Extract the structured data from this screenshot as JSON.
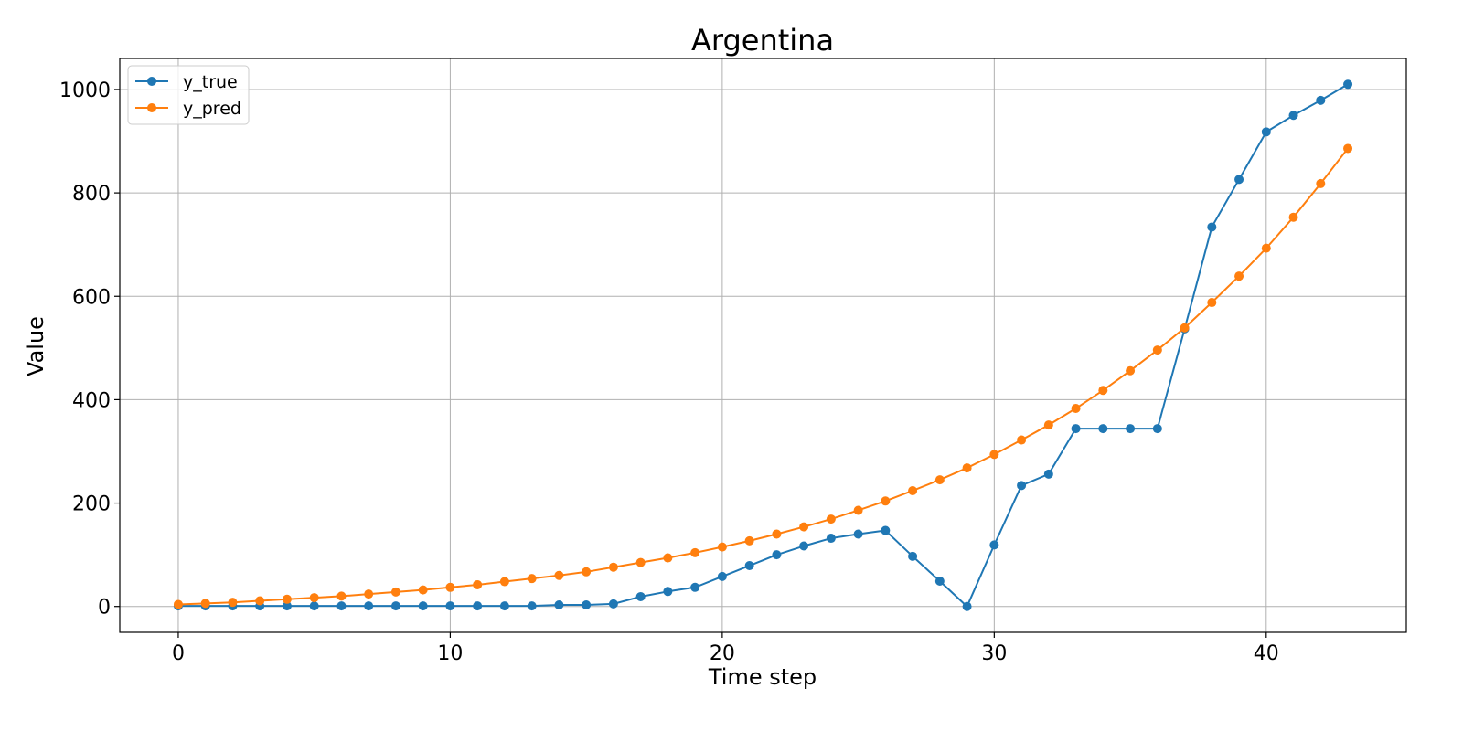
{
  "chart_data": {
    "type": "line",
    "title": "Argentina",
    "xlabel": "Time step",
    "ylabel": "Value",
    "xlim": [
      -2.15,
      45.15
    ],
    "ylim": [
      -50,
      1060
    ],
    "xticks": [
      0,
      10,
      20,
      30,
      40
    ],
    "yticks": [
      0,
      200,
      400,
      600,
      800,
      1000
    ],
    "grid": true,
    "legend": "top-left",
    "x": [
      0,
      1,
      2,
      3,
      4,
      5,
      6,
      7,
      8,
      9,
      10,
      11,
      12,
      13,
      14,
      15,
      16,
      17,
      18,
      19,
      20,
      21,
      22,
      23,
      24,
      25,
      26,
      27,
      28,
      29,
      30,
      31,
      32,
      33,
      34,
      35,
      36,
      37,
      38,
      39,
      40,
      41,
      42,
      43
    ],
    "series": [
      {
        "name": "y_true",
        "color": "#1f77b4",
        "values": [
          1,
          1,
          1,
          1,
          1,
          1,
          1,
          1,
          1,
          1,
          1,
          1,
          1,
          1,
          3,
          3,
          5,
          19,
          29,
          37,
          58,
          79,
          100,
          117,
          132,
          140,
          147,
          97,
          49,
          0,
          119,
          234,
          256,
          344,
          344,
          344,
          344,
          537,
          734,
          826,
          918,
          950,
          979,
          1010
        ]
      },
      {
        "name": "y_pred",
        "color": "#ff7f0e",
        "values": [
          4,
          6,
          8,
          11,
          14,
          17,
          20,
          24,
          28,
          32,
          37,
          42,
          48,
          54,
          60,
          67,
          76,
          85,
          94,
          104,
          115,
          127,
          140,
          154,
          169,
          186,
          204,
          224,
          245,
          268,
          294,
          322,
          351,
          383,
          418,
          456,
          496,
          539,
          588,
          639,
          693,
          753,
          818,
          886
        ]
      }
    ]
  }
}
